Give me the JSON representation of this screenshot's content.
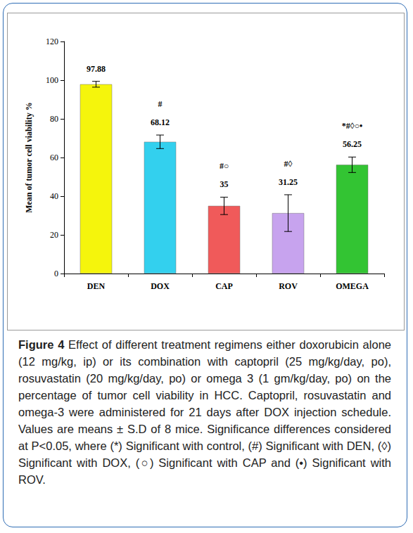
{
  "chart_data": {
    "type": "bar",
    "categories": [
      "DEN",
      "DOX",
      "CAP",
      "ROV",
      "OMEGA"
    ],
    "values": [
      97.88,
      68.12,
      35,
      31.25,
      56.25
    ],
    "errors": [
      1.5,
      3.5,
      4.5,
      9.5,
      4
    ],
    "colors": [
      "#f5f50c",
      "#33d0ee",
      "#f05a5a",
      "#c7a3ee",
      "#33c433"
    ],
    "significance": [
      null,
      "#",
      "#○",
      "#◊",
      "*#◊○•"
    ],
    "ylabel": "Mean of tumor cell viability %",
    "ylim": [
      0,
      120
    ],
    "yticks": [
      0,
      20,
      40,
      60,
      80,
      100,
      120
    ],
    "grid": false,
    "data_labels": true
  },
  "caption": {
    "label": "Figure 4",
    "text": "Effect of different treatment regimens either doxorubicin alone (12 mg/kg, ip) or its combination with captopril (25 mg/kg/day, po), rosuvastatin (20 mg/kg/day, po) or omega 3 (1 gm/kg/day, po) on the percentage of tumor cell viability in HCC. Captopril, rosuvastatin and omega-3 were administered for 21 days after DOX injection schedule. Values are means ± S.D of 8 mice. Significance differences considered at P<0.05, where (*) Significant with control, (#) Significant with DEN, (◊) Significant with DOX, (○) Significant with CAP and (•) Significant with ROV."
  }
}
